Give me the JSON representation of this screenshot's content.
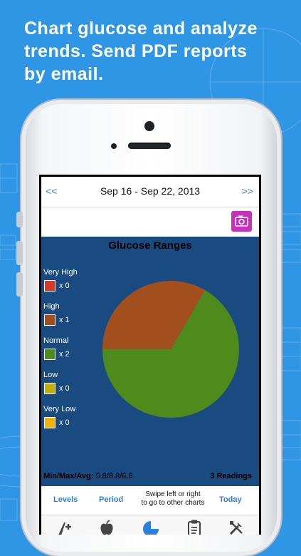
{
  "headline": {
    "line1": "Chart glucose and analyze",
    "line2": "trends. Send PDF reports",
    "line3": "by email."
  },
  "navbar": {
    "prev": "<<",
    "title": "Sep 16 - Sep 22, 2013",
    "next": ">>"
  },
  "toolbar": {
    "camera_icon": "camera-icon"
  },
  "chart_data": {
    "type": "pie",
    "title": "Glucose Ranges",
    "legend": [
      {
        "label": "Very High",
        "count": "x 0",
        "value": 0,
        "color": "#d6392a"
      },
      {
        "label": "High",
        "count": "x 1",
        "value": 1,
        "color": "#a24f1d"
      },
      {
        "label": "Normal",
        "count": "x 2",
        "value": 2,
        "color": "#4e8a1c"
      },
      {
        "label": "Low",
        "count": "x 0",
        "value": 0,
        "color": "#c2b00a"
      },
      {
        "label": "Very Low",
        "count": "x 0",
        "value": 0,
        "color": "#f0b20b"
      }
    ],
    "summary_label": "Min/Max/Avg:",
    "summary_value": "5.8/8.8/6.8",
    "readings": "3 Readings"
  },
  "controls": {
    "levels": "Levels",
    "period": "Period",
    "hint_line1": "Swipe left or right",
    "hint_line2": "to go to other charts",
    "today": "Today"
  },
  "tabbar": {
    "icons": [
      "add-entry-icon",
      "food-icon",
      "charts-icon",
      "logbook-icon",
      "settings-icon"
    ]
  },
  "colors": {
    "background": "#2f96e6",
    "chart_panel": "#1a4b80",
    "accent": "#2a7fe0",
    "camera_button": "#c830c0"
  }
}
